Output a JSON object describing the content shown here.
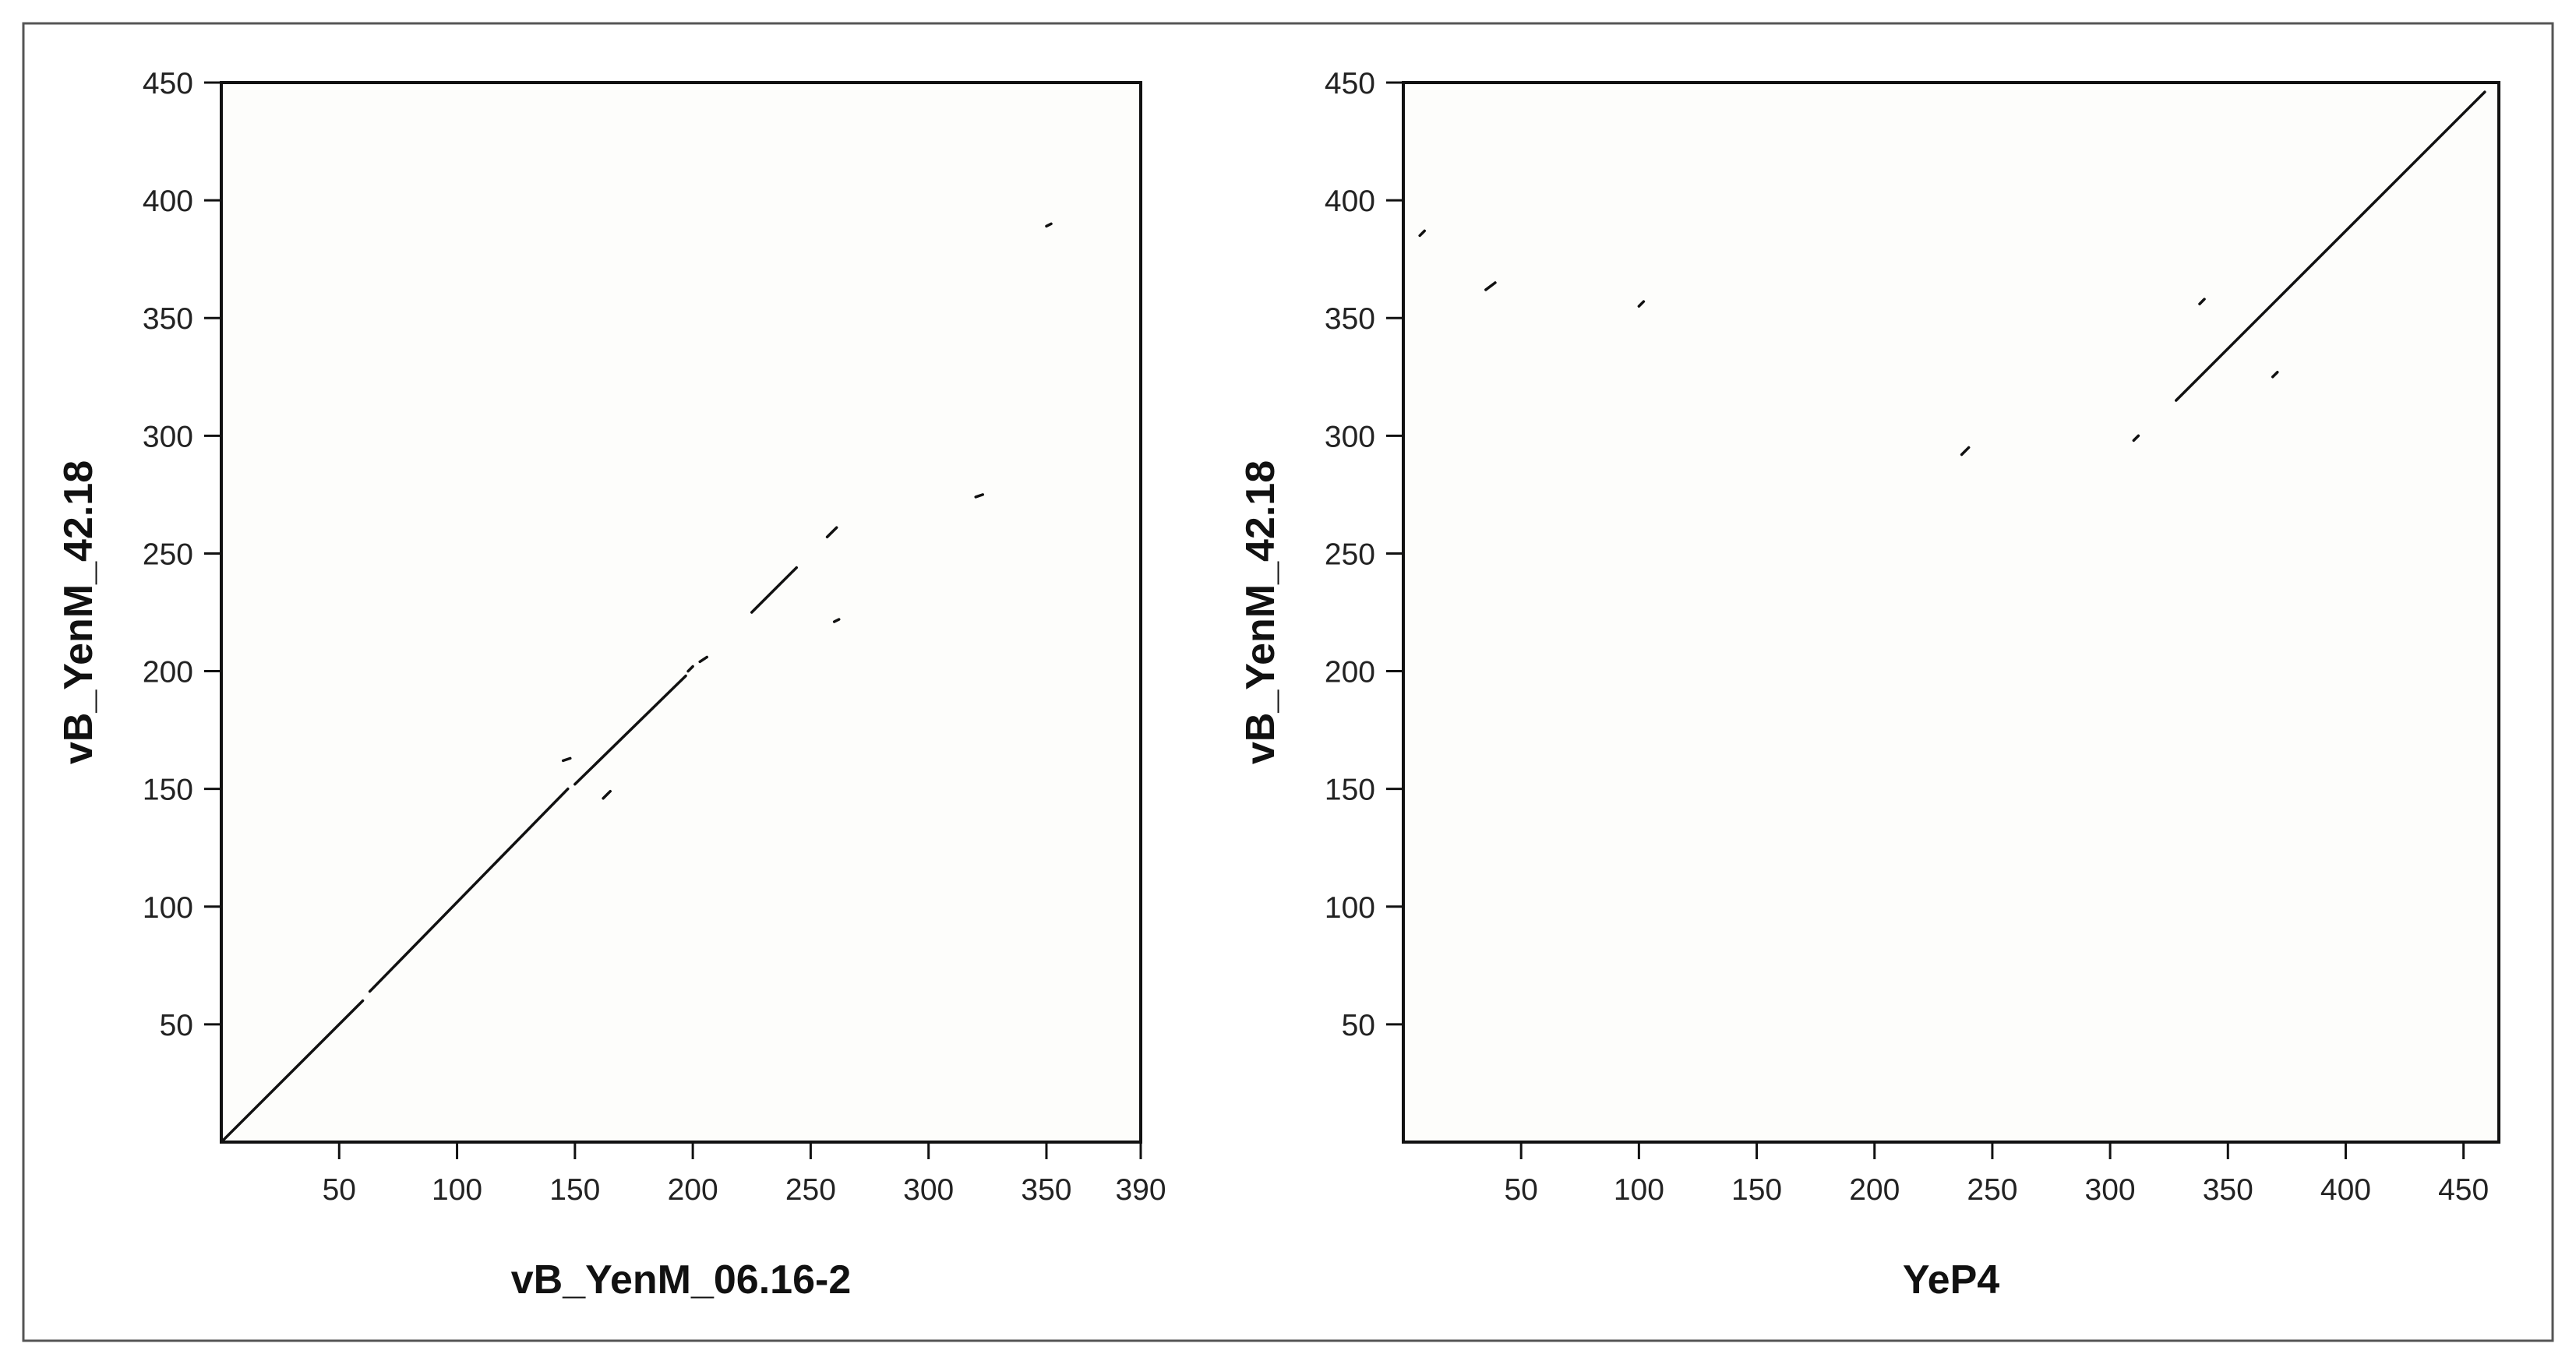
{
  "figure": {
    "background": "#fdfdfb",
    "frame_color": "#555555",
    "line_color": "#111111"
  },
  "chart_data": [
    {
      "type": "scatter",
      "plot_kind": "dot plot",
      "title": "",
      "xlabel": "vB_YenM_06.16-2",
      "ylabel": "vB_YenM_42.18",
      "xlim": [
        0,
        390
      ],
      "ylim": [
        0,
        450
      ],
      "xticks": [
        50,
        100,
        150,
        200,
        250,
        300,
        350,
        390
      ],
      "yticks": [
        50,
        100,
        150,
        200,
        250,
        300,
        350,
        400,
        450
      ],
      "grid": false,
      "segments": [
        {
          "x": [
            0,
            60
          ],
          "y": [
            0,
            60
          ]
        },
        {
          "x": [
            63,
            147
          ],
          "y": [
            64,
            150
          ]
        },
        {
          "x": [
            150,
            197
          ],
          "y": [
            152,
            198
          ]
        },
        {
          "x": [
            198,
            200
          ],
          "y": [
            200,
            202
          ]
        },
        {
          "x": [
            203,
            206
          ],
          "y": [
            204,
            206
          ]
        },
        {
          "x": [
            225,
            244
          ],
          "y": [
            225,
            244
          ]
        },
        {
          "x": [
            257,
            261
          ],
          "y": [
            257,
            261
          ]
        },
        {
          "x": [
            145,
            148
          ],
          "y": [
            162,
            163
          ]
        },
        {
          "x": [
            162,
            165
          ],
          "y": [
            146,
            149
          ]
        },
        {
          "x": [
            260,
            262
          ],
          "y": [
            221,
            222
          ]
        },
        {
          "x": [
            320,
            323
          ],
          "y": [
            274,
            275
          ]
        },
        {
          "x": [
            350,
            352
          ],
          "y": [
            389,
            390
          ]
        }
      ]
    },
    {
      "type": "scatter",
      "plot_kind": "dot plot",
      "title": "",
      "xlabel": "YeP4",
      "ylabel": "vB_YenM_42.18",
      "xlim": [
        0,
        465
      ],
      "ylim": [
        0,
        450
      ],
      "xticks": [
        50,
        100,
        150,
        200,
        250,
        300,
        350,
        400,
        450
      ],
      "yticks": [
        50,
        100,
        150,
        200,
        250,
        300,
        350,
        400,
        450
      ],
      "grid": false,
      "segments": [
        {
          "x": [
            328,
            459
          ],
          "y": [
            315,
            446
          ]
        },
        {
          "x": [
            7,
            9
          ],
          "y": [
            385,
            387
          ]
        },
        {
          "x": [
            35,
            39
          ],
          "y": [
            362,
            365
          ]
        },
        {
          "x": [
            100,
            102
          ],
          "y": [
            355,
            357
          ]
        },
        {
          "x": [
            237,
            240
          ],
          "y": [
            292,
            295
          ]
        },
        {
          "x": [
            310,
            312
          ],
          "y": [
            298,
            300
          ]
        },
        {
          "x": [
            338,
            340
          ],
          "y": [
            356,
            358
          ]
        },
        {
          "x": [
            369,
            371
          ],
          "y": [
            325,
            327
          ]
        }
      ]
    }
  ]
}
